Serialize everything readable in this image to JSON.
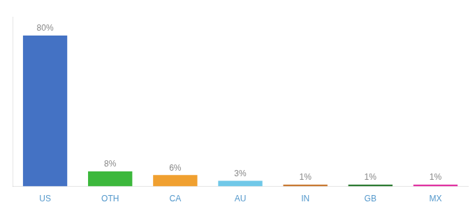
{
  "chart_data": {
    "type": "bar",
    "categories": [
      "US",
      "OTH",
      "CA",
      "AU",
      "IN",
      "GB",
      "MX"
    ],
    "values": [
      80,
      8,
      6,
      3,
      1,
      1,
      1
    ],
    "value_labels": [
      "80%",
      "8%",
      "6%",
      "3%",
      "1%",
      "1%",
      "1%"
    ],
    "colors": [
      "#4472c4",
      "#3cb83c",
      "#f0a030",
      "#70c8e8",
      "#c87830",
      "#2a7a30",
      "#e030a0"
    ],
    "ylim": [
      0,
      90
    ],
    "grid": false,
    "data_labels": true,
    "tick_labels": "x"
  }
}
